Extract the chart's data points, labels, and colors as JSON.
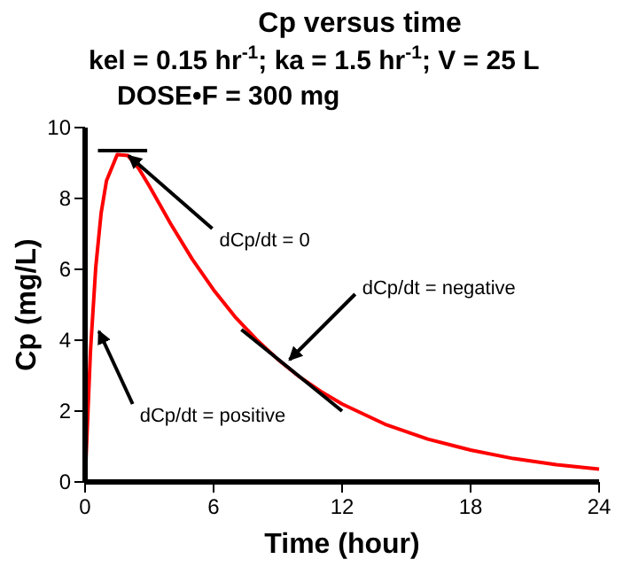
{
  "chart_data": {
    "type": "line",
    "title": "Cp versus time",
    "subtitle": "kel = 0.15 hr$^{-1}$; ka = 1.5 hr$^{-1}$; V = 25 L\nDOSE•F = 300 mg",
    "xlabel": "Time (hour)",
    "ylabel": "Cp (mg/L)",
    "series": [
      {
        "color": "#ff0000",
        "x": [
          0,
          0.25,
          0.5,
          0.75,
          1,
          1.5,
          2,
          2.5,
          3,
          4,
          5,
          6,
          7,
          8,
          9,
          10,
          11,
          12,
          14,
          16,
          18,
          20,
          22,
          24
        ],
        "values": [
          0,
          3.68,
          6.07,
          7.59,
          8.5,
          9.24,
          9.21,
          8.85,
          8.35,
          7.28,
          6.29,
          5.42,
          4.66,
          4.02,
          3.46,
          2.97,
          2.56,
          2.2,
          1.63,
          1.21,
          0.9,
          0.66,
          0.49,
          0.36
        ]
      },
      {
        "color": "#000000",
        "x": [
          0.6,
          2.9
        ],
        "values": [
          9.35,
          9.35
        ]
      },
      {
        "color": "#000000",
        "x": [
          7.3,
          12
        ],
        "values": [
          4.3,
          2.0
        ]
      }
    ],
    "annotations": [
      {
        "text": "dCp/dt = 0",
        "x": 1.8,
        "y": 9.35
      },
      {
        "text": "dCp/dt = negative",
        "x": 9.3,
        "y": 3.3
      },
      {
        "text": "dCp/dt = positive",
        "x": 0.4,
        "y": 4.4
      }
    ],
    "xlim": [
      0,
      24
    ],
    "xticks": [
      0,
      6,
      12,
      18,
      24
    ],
    "ylim": [
      0,
      10
    ],
    "yticks": [
      0,
      2,
      4,
      6,
      8,
      10
    ],
    "grid": false,
    "marker": "none",
    "line_style": "solid"
  }
}
